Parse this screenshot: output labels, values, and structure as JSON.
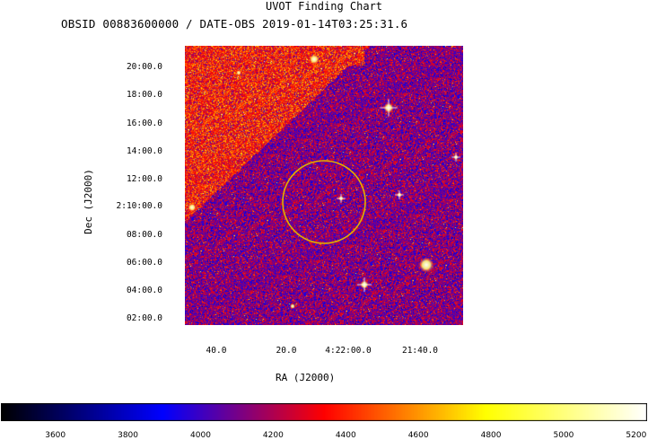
{
  "chart": {
    "title": "UVOT Finding Chart",
    "subtitle": "OBSID 00883600000 / DATE-OBS 2019-01-14T03:25:31.6"
  },
  "chart_data": {
    "type": "heatmap",
    "xlabel": "RA (J2000)",
    "ylabel": "Dec (J2000)",
    "x_tick_labels": [
      "40.0",
      "20.0",
      "4:22:00.0",
      "21:40.0"
    ],
    "y_tick_labels": [
      "20:00.0",
      "18:00.0",
      "16:00.0",
      "14:00.0",
      "12:00.0",
      "2:10:00.0",
      "08:00.0",
      "06:00.0",
      "04:00.0",
      "02:00.0"
    ],
    "colorbar_ticks": [
      3600,
      3800,
      4000,
      4200,
      4400,
      4600,
      4800,
      5000,
      5200
    ],
    "colorbar_range": [
      3450,
      5230
    ],
    "colormap": [
      "#000000",
      "#0000ff",
      "#ff0000",
      "#ffff00",
      "#ffffff"
    ],
    "target_circle_color": "#e0b000"
  }
}
